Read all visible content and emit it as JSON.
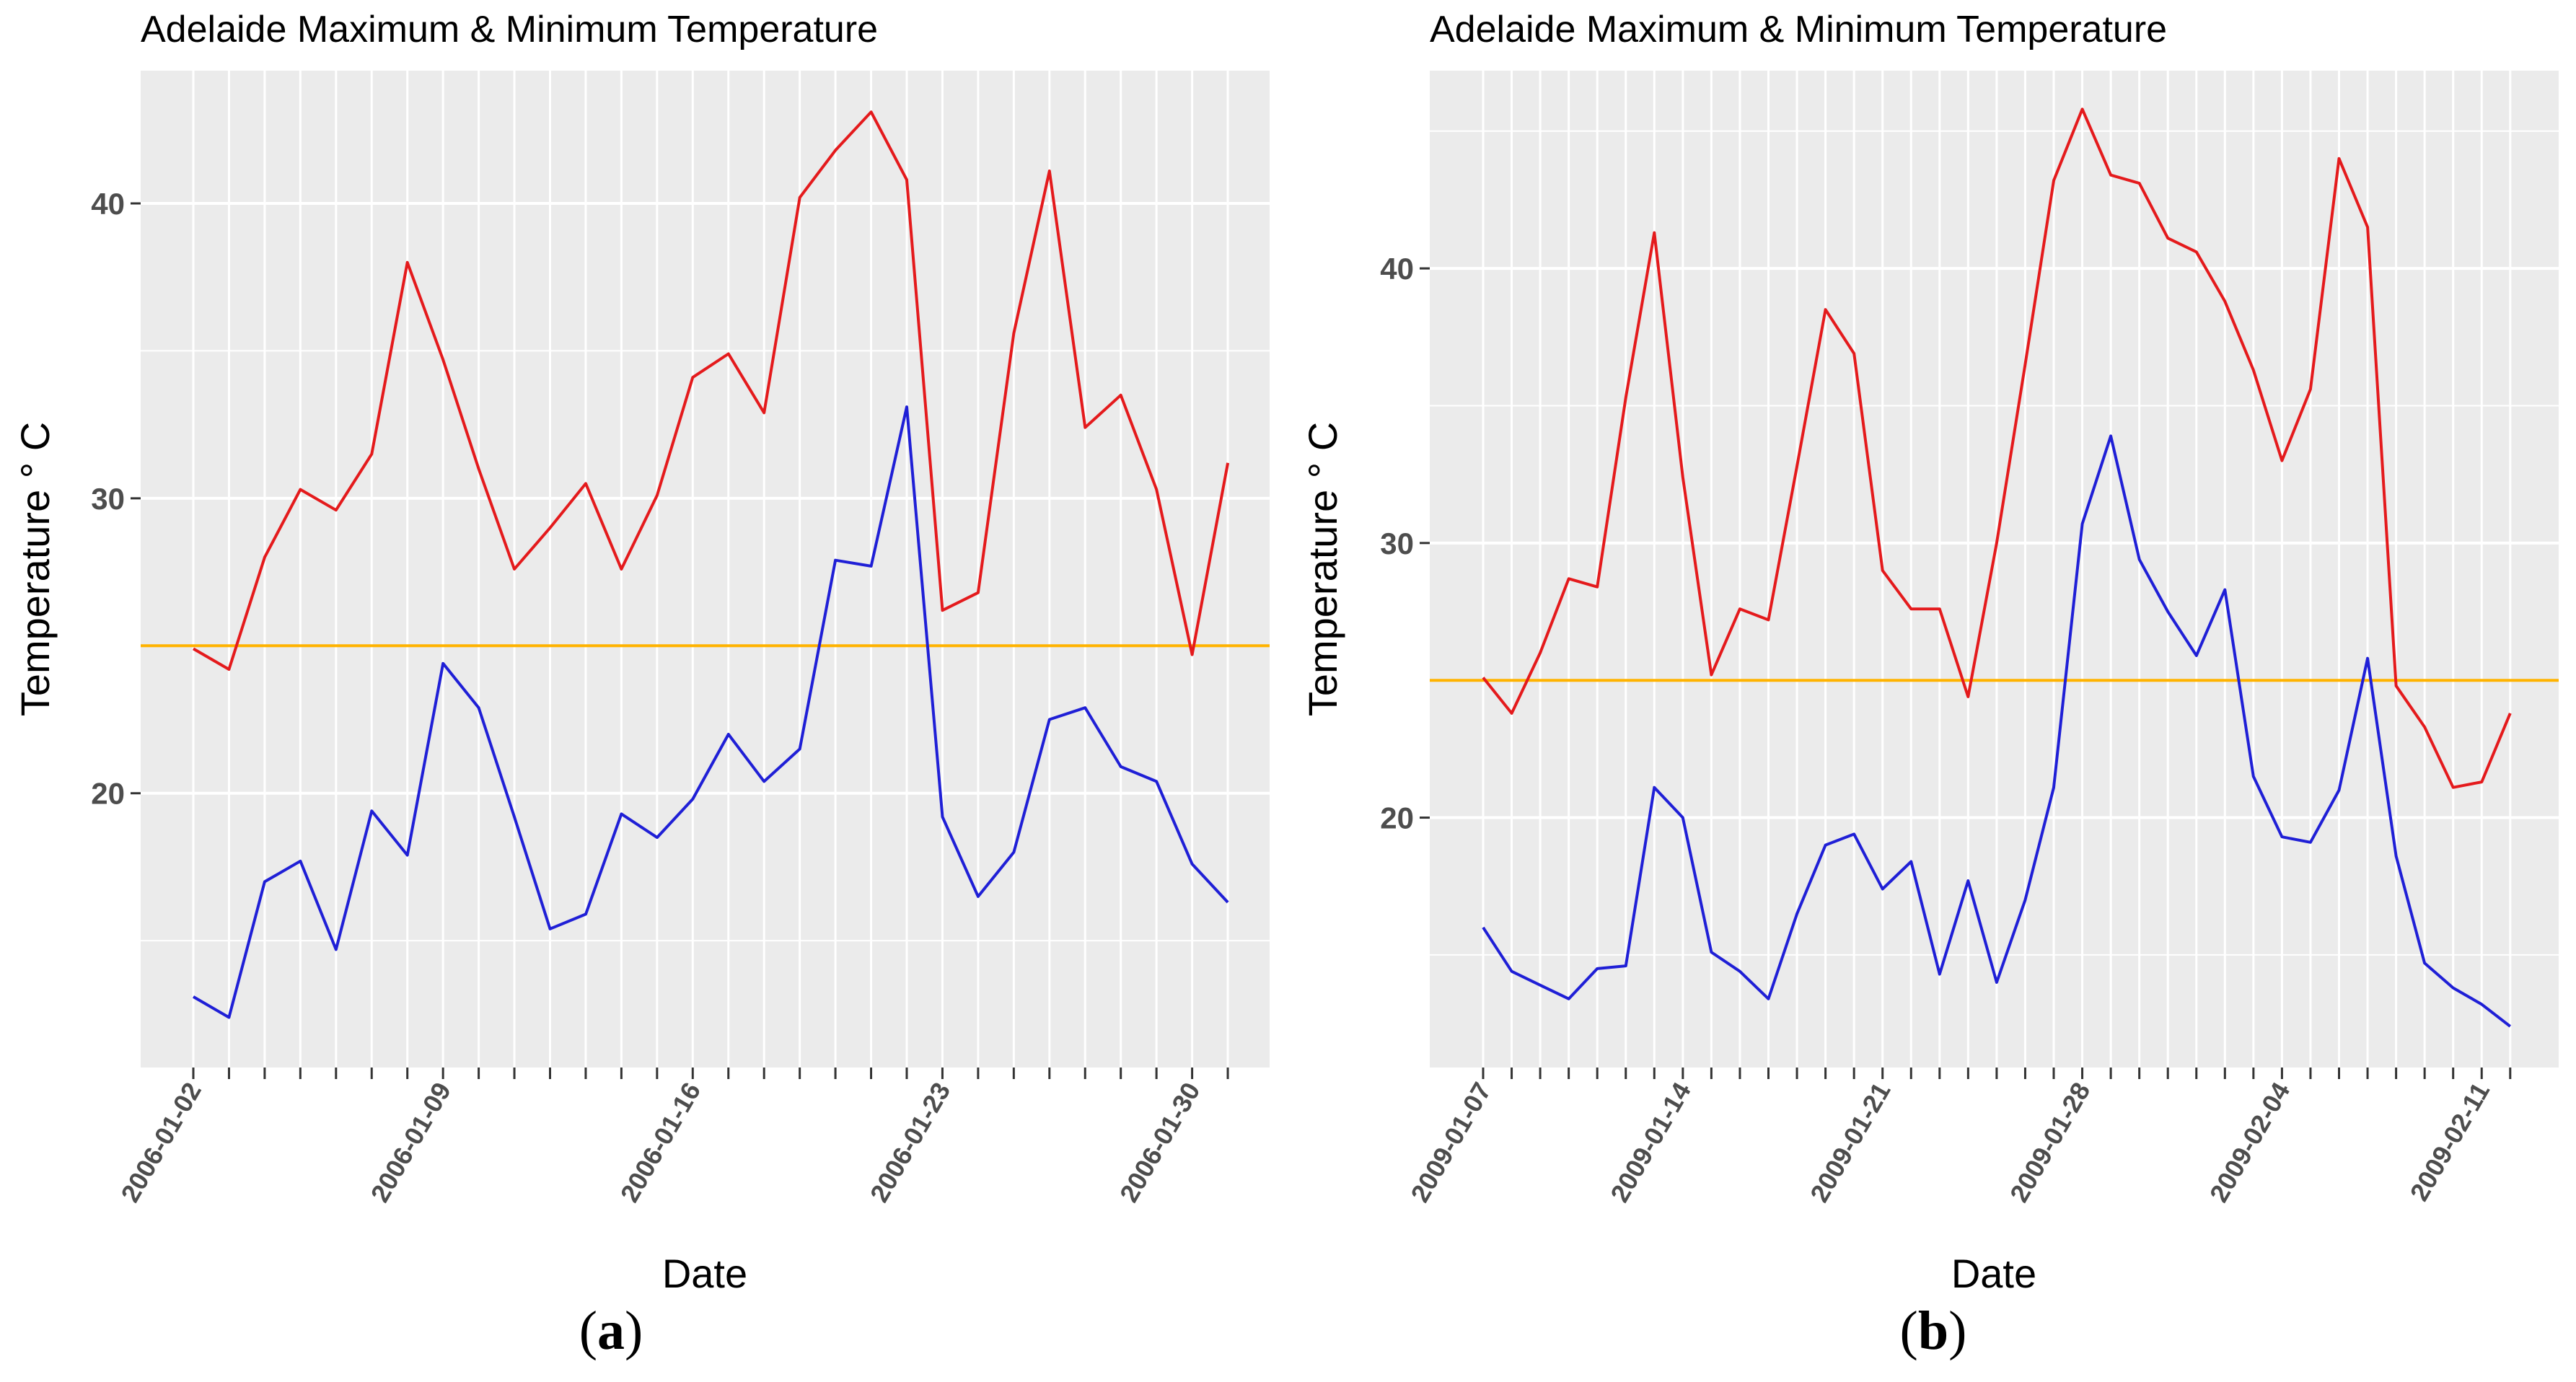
{
  "chart_data": [
    {
      "type": "line",
      "title": "Adelaide Maximum & Minimum Temperature",
      "xlabel": "Date",
      "ylabel": "Temperature ° C",
      "caption_letter": "a",
      "x": [
        "2006-01-02",
        "2006-01-03",
        "2006-01-04",
        "2006-01-05",
        "2006-01-06",
        "2006-01-07",
        "2006-01-08",
        "2006-01-09",
        "2006-01-10",
        "2006-01-11",
        "2006-01-12",
        "2006-01-13",
        "2006-01-14",
        "2006-01-15",
        "2006-01-16",
        "2006-01-17",
        "2006-01-18",
        "2006-01-19",
        "2006-01-20",
        "2006-01-21",
        "2006-01-22",
        "2006-01-23",
        "2006-01-24",
        "2006-01-25",
        "2006-01-26",
        "2006-01-27",
        "2006-01-28",
        "2006-01-29",
        "2006-01-30",
        "2006-01-31"
      ],
      "x_tick_labels": [
        "2006-01-02",
        "2006-01-09",
        "2006-01-16",
        "2006-01-23",
        "2006-01-30"
      ],
      "yticks": [
        20,
        30,
        40
      ],
      "ylim": [
        10.7,
        44.5
      ],
      "reference_line": 25,
      "grid": true,
      "series": [
        {
          "name": "Maximum",
          "color": "#e41a1c",
          "values": [
            24.9,
            24.2,
            28.0,
            30.3,
            29.6,
            31.5,
            38.0,
            34.7,
            31.0,
            27.6,
            29.0,
            30.5,
            27.6,
            30.1,
            34.1,
            34.9,
            32.9,
            40.2,
            41.8,
            43.1,
            40.8,
            26.2,
            26.8,
            35.6,
            41.1,
            32.4,
            33.5,
            30.3,
            24.7,
            31.2
          ]
        },
        {
          "name": "Minimum",
          "color": "#1f1fd6",
          "values": [
            13.1,
            12.4,
            17.0,
            17.7,
            14.7,
            19.4,
            17.9,
            24.4,
            22.9,
            19.2,
            15.4,
            15.9,
            19.3,
            18.5,
            19.8,
            22.0,
            20.4,
            21.5,
            27.9,
            27.7,
            33.1,
            19.2,
            16.5,
            18.0,
            22.5,
            22.9,
            20.9,
            20.4,
            17.6,
            16.3
          ]
        }
      ],
      "colors": {
        "reference_line": "#ffb300",
        "panel_bg": "#ebebeb",
        "grid": "#ffffff"
      }
    },
    {
      "type": "line",
      "title": "Adelaide Maximum & Minimum Temperature",
      "xlabel": "Date",
      "ylabel": "Temperature ° C",
      "caption_letter": "b",
      "x": [
        "2009-01-07",
        "2009-01-08",
        "2009-01-09",
        "2009-01-10",
        "2009-01-11",
        "2009-01-12",
        "2009-01-13",
        "2009-01-14",
        "2009-01-15",
        "2009-01-16",
        "2009-01-17",
        "2009-01-18",
        "2009-01-19",
        "2009-01-20",
        "2009-01-21",
        "2009-01-22",
        "2009-01-23",
        "2009-01-24",
        "2009-01-25",
        "2009-01-26",
        "2009-01-27",
        "2009-01-28",
        "2009-01-29",
        "2009-01-30",
        "2009-01-31",
        "2009-02-01",
        "2009-02-02",
        "2009-02-03",
        "2009-02-04",
        "2009-02-05",
        "2009-02-06",
        "2009-02-07",
        "2009-02-08",
        "2009-02-09",
        "2009-02-10",
        "2009-02-11",
        "2009-02-12"
      ],
      "x_tick_labels": [
        "2009-01-07",
        "2009-01-14",
        "2009-01-21",
        "2009-01-28",
        "2009-02-04",
        "2009-02-11"
      ],
      "yticks": [
        20,
        30,
        40
      ],
      "ylim": [
        10.9,
        47.2
      ],
      "reference_line": 25,
      "grid": true,
      "series": [
        {
          "name": "Maximum",
          "color": "#e41a1c",
          "values": [
            25.1,
            23.8,
            26.0,
            28.7,
            28.4,
            35.3,
            41.3,
            32.4,
            25.2,
            27.6,
            27.2,
            32.8,
            38.5,
            36.9,
            29.0,
            27.6,
            27.6,
            24.4,
            30.0,
            36.5,
            43.2,
            45.8,
            43.4,
            43.1,
            41.1,
            40.6,
            38.8,
            36.3,
            33.0,
            35.6,
            44.0,
            41.5,
            24.8,
            23.3,
            21.1,
            21.3,
            23.8
          ]
        },
        {
          "name": "Minimum",
          "color": "#1f1fd6",
          "values": [
            16.0,
            14.4,
            13.9,
            13.4,
            14.5,
            14.6,
            21.1,
            20.0,
            15.1,
            14.4,
            13.4,
            16.5,
            19.0,
            19.4,
            17.4,
            18.4,
            14.3,
            17.7,
            14.0,
            17.0,
            21.1,
            30.7,
            33.9,
            29.4,
            27.5,
            25.9,
            28.3,
            21.5,
            19.3,
            19.1,
            21.0,
            25.8,
            18.6,
            14.7,
            13.8,
            13.2,
            12.4
          ]
        }
      ],
      "colors": {
        "reference_line": "#ffb300",
        "panel_bg": "#ebebeb",
        "grid": "#ffffff"
      }
    }
  ]
}
